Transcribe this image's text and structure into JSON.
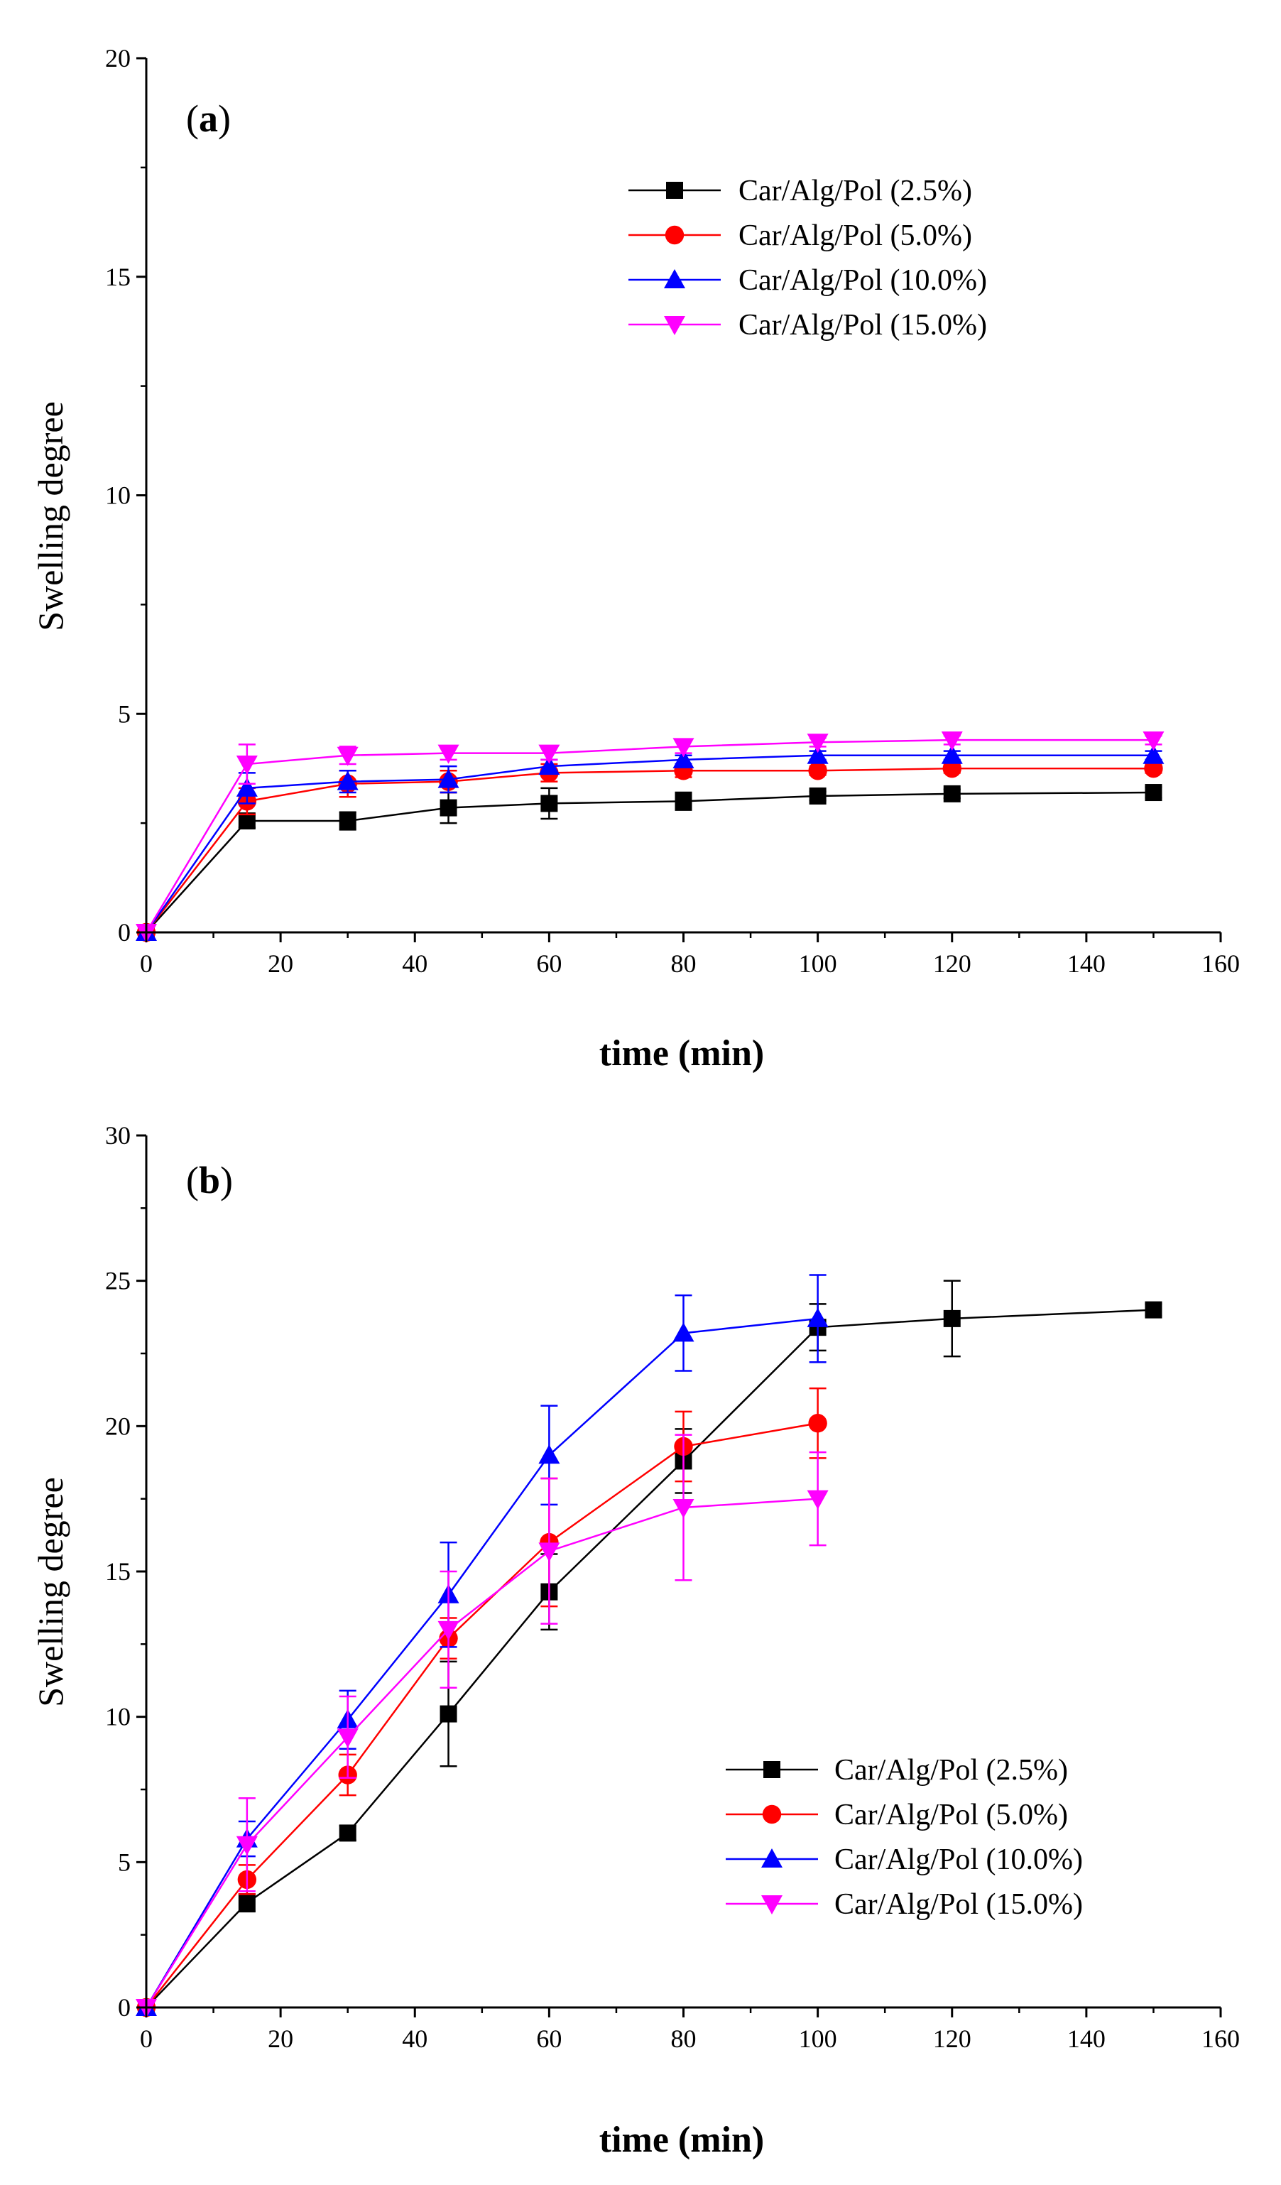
{
  "chart_data": [
    {
      "type": "line",
      "panel_label_open": "(",
      "panel_label_letter": "a",
      "panel_label_close": ")",
      "xlabel": "time (min)",
      "ylabel": "Swelling degree",
      "xlim": [
        0,
        160
      ],
      "ylim": [
        0,
        20
      ],
      "xticks": [
        0,
        20,
        40,
        60,
        80,
        100,
        120,
        140,
        160
      ],
      "yticks": [
        0,
        5,
        10,
        15,
        20
      ],
      "legend_position": "top-right",
      "series": [
        {
          "name": "Car/Alg/Pol (2.5%)",
          "color": "#000000",
          "marker": "square",
          "x": [
            0,
            15,
            30,
            45,
            60,
            80,
            100,
            120,
            150
          ],
          "values": [
            0,
            2.55,
            2.55,
            2.85,
            2.95,
            3.0,
            3.12,
            3.17,
            3.2
          ],
          "errors": [
            0,
            0.15,
            0.2,
            0.35,
            0.35,
            0.2,
            0.1,
            0.1,
            0.12
          ]
        },
        {
          "name": "Car/Alg/Pol (5.0%)",
          "color": "#ff0000",
          "marker": "circle",
          "x": [
            0,
            15,
            30,
            45,
            60,
            80,
            100,
            120,
            150
          ],
          "values": [
            0,
            3.0,
            3.4,
            3.45,
            3.65,
            3.7,
            3.7,
            3.75,
            3.75
          ],
          "errors": [
            0,
            0.3,
            0.3,
            0.25,
            0.2,
            0.15,
            0.1,
            0.1,
            0.1
          ]
        },
        {
          "name": "Car/Alg/Pol (10.0%)",
          "color": "#0000ff",
          "marker": "triangle-up",
          "x": [
            0,
            15,
            30,
            45,
            60,
            80,
            100,
            120,
            150
          ],
          "values": [
            0,
            3.3,
            3.45,
            3.5,
            3.8,
            3.95,
            4.05,
            4.05,
            4.05
          ],
          "errors": [
            0,
            0.35,
            0.25,
            0.3,
            0.15,
            0.1,
            0.1,
            0.1,
            0.1
          ]
        },
        {
          "name": "Car/Alg/Pol (15.0%)",
          "color": "#ff00ff",
          "marker": "triangle-down",
          "x": [
            0,
            15,
            30,
            45,
            60,
            80,
            100,
            120,
            150
          ],
          "values": [
            0,
            3.85,
            4.05,
            4.1,
            4.1,
            4.25,
            4.35,
            4.4,
            4.4
          ],
          "errors": [
            0,
            0.45,
            0.2,
            0.15,
            0.15,
            0.15,
            0.1,
            0.1,
            0.1
          ]
        }
      ]
    },
    {
      "type": "line",
      "panel_label_open": "(",
      "panel_label_letter": "b",
      "panel_label_close": ")",
      "xlabel": "time (min)",
      "ylabel": "Swelling degree",
      "xlim": [
        0,
        160
      ],
      "ylim": [
        0,
        30
      ],
      "xticks": [
        0,
        20,
        40,
        60,
        80,
        100,
        120,
        140,
        160
      ],
      "yticks": [
        0,
        5,
        10,
        15,
        20,
        25,
        30
      ],
      "legend_position": "bottom-right",
      "series": [
        {
          "name": "Car/Alg/Pol (2.5%)",
          "color": "#000000",
          "marker": "square",
          "x": [
            0,
            15,
            30,
            45,
            60,
            80,
            100,
            120,
            150
          ],
          "values": [
            0,
            3.6,
            6.0,
            10.1,
            14.3,
            18.8,
            23.4,
            23.7,
            24.0
          ],
          "errors": [
            0,
            0.3,
            0.25,
            1.8,
            1.3,
            1.1,
            0.8,
            1.3,
            0.2
          ]
        },
        {
          "name": "Car/Alg/Pol (5.0%)",
          "color": "#ff0000",
          "marker": "circle",
          "x": [
            0,
            15,
            30,
            45,
            60,
            80,
            100
          ],
          "values": [
            0,
            4.4,
            8.0,
            12.7,
            16.0,
            19.3,
            20.1
          ],
          "errors": [
            0,
            0.5,
            0.7,
            0.7,
            2.2,
            1.2,
            1.2
          ]
        },
        {
          "name": "Car/Alg/Pol (10.0%)",
          "color": "#0000ff",
          "marker": "triangle-up",
          "x": [
            0,
            15,
            30,
            45,
            60,
            80,
            100
          ],
          "values": [
            0,
            5.8,
            9.9,
            14.2,
            19.0,
            23.2,
            23.7
          ],
          "errors": [
            0,
            0.6,
            1.0,
            1.8,
            1.7,
            1.3,
            1.5
          ]
        },
        {
          "name": "Car/Alg/Pol (15.0%)",
          "color": "#ff00ff",
          "marker": "triangle-down",
          "x": [
            0,
            15,
            30,
            45,
            60,
            80,
            100
          ],
          "values": [
            0,
            5.6,
            9.3,
            13.0,
            15.7,
            17.2,
            17.5
          ],
          "errors": [
            0,
            1.6,
            1.4,
            2.0,
            2.5,
            2.5,
            1.6
          ]
        }
      ]
    }
  ]
}
